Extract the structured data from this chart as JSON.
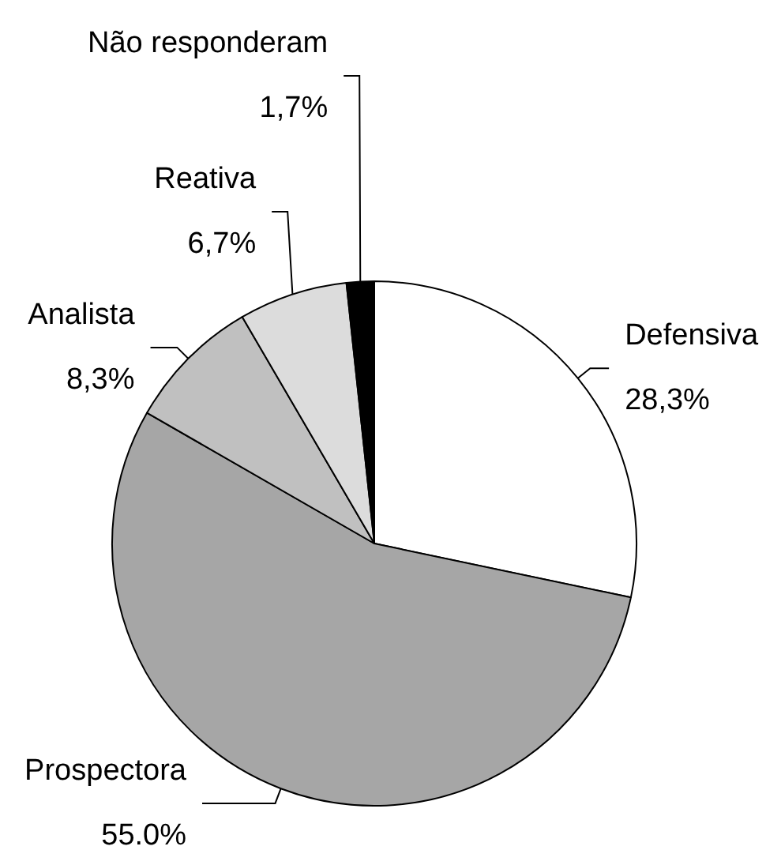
{
  "chart_data": {
    "type": "pie",
    "categories": [
      "Defensiva",
      "Prospectora",
      "Analista",
      "Reativa",
      "Não responderam"
    ],
    "values": [
      28.3,
      55.0,
      8.3,
      6.7,
      1.7
    ],
    "value_labels": [
      "28,3%",
      "55.0%",
      "8,3%",
      "6,7%",
      "1,7%"
    ],
    "colors": [
      "#ffffff",
      "#a6a6a6",
      "#c0c0c0",
      "#dcdcdc",
      "#000000"
    ]
  }
}
